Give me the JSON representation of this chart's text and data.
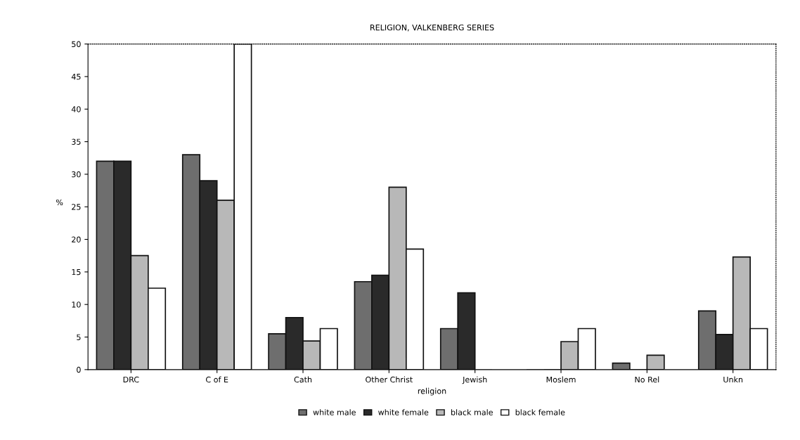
{
  "chart_data": {
    "type": "bar",
    "title": "RELIGION, VALKENBERG SERIES",
    "xlabel": "religion",
    "ylabel": "%",
    "categories": [
      "DRC",
      "C of E",
      "Cath",
      "Other Christ",
      "Jewish",
      "Moslem",
      "No Rel",
      "Unkn"
    ],
    "series": [
      {
        "name": "white male",
        "color": "#6e6e6e",
        "values": [
          32,
          33,
          5.5,
          13.5,
          6.3,
          0,
          1,
          9
        ]
      },
      {
        "name": "white female",
        "color": "#2a2a2a",
        "values": [
          32,
          29,
          8,
          14.5,
          11.8,
          0,
          0,
          5.4
        ]
      },
      {
        "name": "black male",
        "color": "#b8b8b8",
        "values": [
          17.5,
          26,
          4.4,
          28,
          0,
          4.3,
          2.2,
          17.3
        ]
      },
      {
        "name": "black female",
        "color": "#ffffff",
        "values": [
          12.5,
          50,
          6.3,
          18.5,
          0,
          6.3,
          0,
          6.3
        ]
      }
    ],
    "ylim": [
      0,
      50
    ],
    "yticks": [
      0,
      5,
      10,
      15,
      20,
      25,
      30,
      35,
      40,
      45,
      50
    ],
    "grid": false,
    "legend": "bottom"
  }
}
